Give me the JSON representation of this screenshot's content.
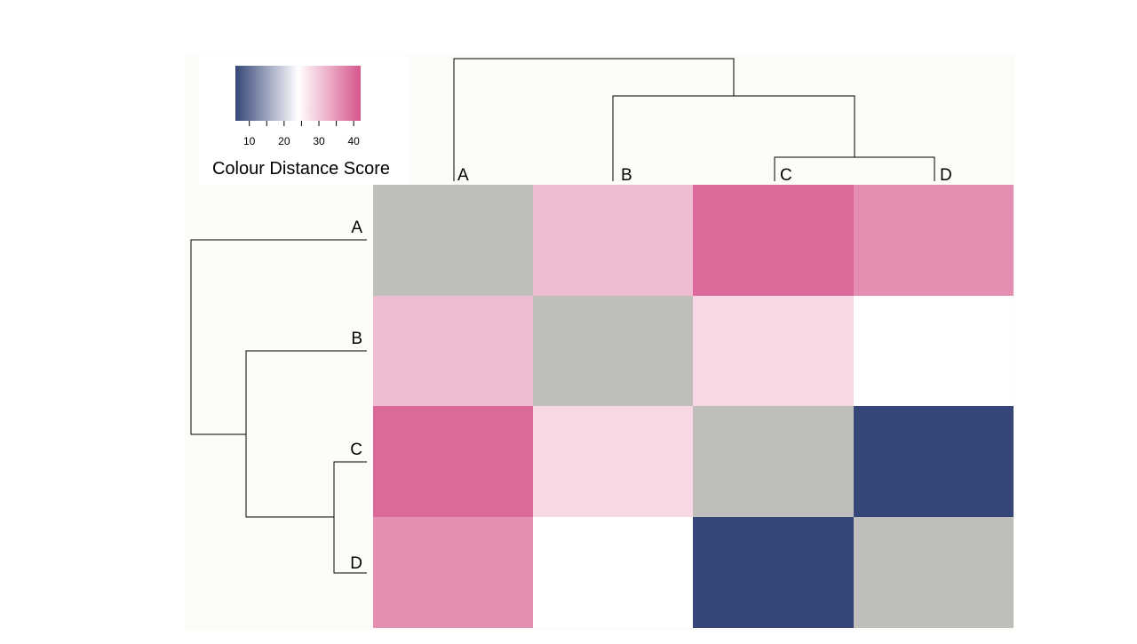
{
  "chart_data": {
    "type": "heatmap",
    "title": "",
    "rows": [
      "A",
      "B",
      "C",
      "D"
    ],
    "columns": [
      "A",
      "B",
      "C",
      "D"
    ],
    "values": [
      [
        null,
        31,
        40,
        36
      ],
      [
        31,
        null,
        28,
        24
      ],
      [
        40,
        28,
        null,
        6
      ],
      [
        36,
        24,
        6,
        null
      ]
    ],
    "diagonal_color": "#bfbebb",
    "colorbar": {
      "title": "Colour Distance Score",
      "range": [
        6,
        42
      ],
      "ticks": [
        10,
        20,
        30,
        40
      ],
      "stops": [
        "#364679",
        "#ffffff",
        "#d7568c"
      ]
    },
    "dendrogram": {
      "leaves": [
        "A",
        "B",
        "C",
        "D"
      ],
      "merges": [
        {
          "left": "C",
          "right": "D"
        },
        {
          "left": "B",
          "right": "CD"
        },
        {
          "left": "A",
          "right": "BCD"
        }
      ]
    }
  },
  "colors": {
    "panel_background": "#fdfcf8",
    "line": "#000000"
  }
}
